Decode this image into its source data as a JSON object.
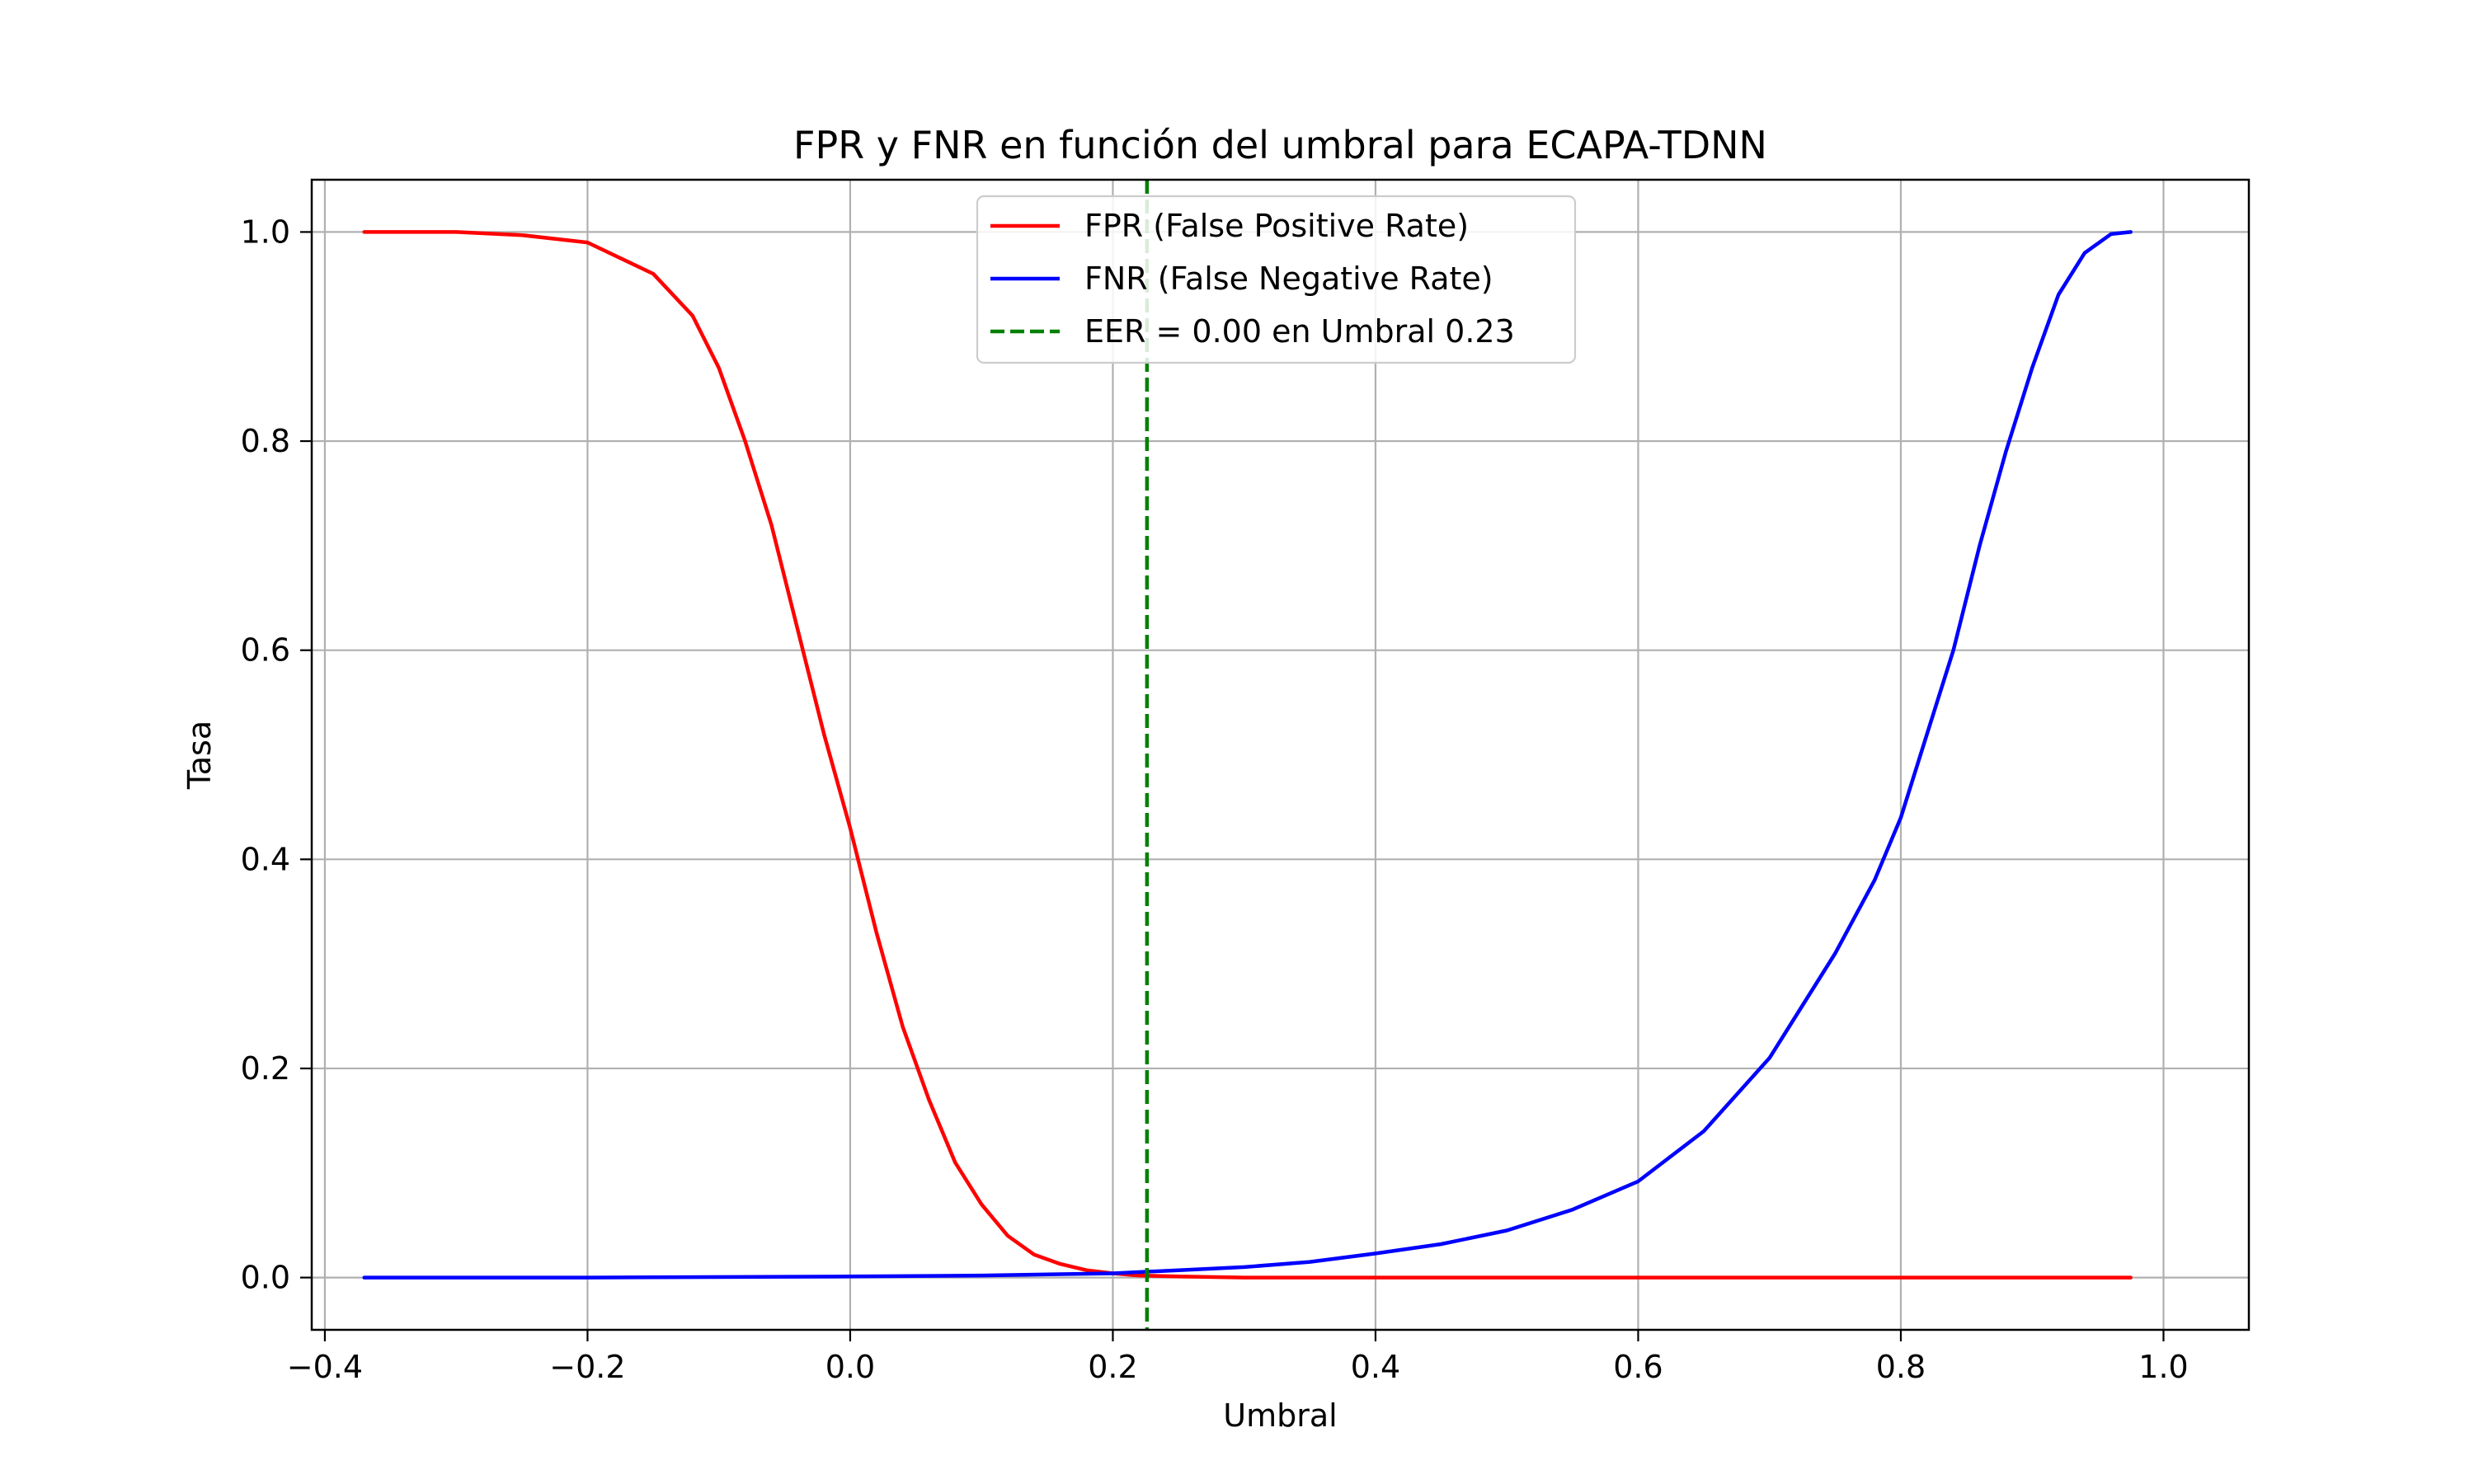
{
  "chart_data": {
    "type": "line",
    "title": "FPR y FNR en función del umbral para ECAPA-TDNN",
    "xlabel": "Umbral",
    "ylabel": "Tasa",
    "xlim": [
      -0.41,
      1.065
    ],
    "ylim": [
      -0.05,
      1.05
    ],
    "x_ticks": [
      -0.4,
      -0.2,
      0.0,
      0.2,
      0.4,
      0.6,
      0.8,
      1.0
    ],
    "x_tick_labels": [
      "−0.4",
      "−0.2",
      "0.0",
      "0.2",
      "0.4",
      "0.6",
      "0.8",
      "1.0"
    ],
    "y_ticks": [
      0.0,
      0.2,
      0.4,
      0.6,
      0.8,
      1.0
    ],
    "y_tick_labels": [
      "0.0",
      "0.2",
      "0.4",
      "0.6",
      "0.8",
      "1.0"
    ],
    "grid": true,
    "legend_position": "upper-center",
    "series": [
      {
        "name": "FPR (False Positive Rate)",
        "color": "#ff0000",
        "style": "solid",
        "x": [
          -0.37,
          -0.3,
          -0.25,
          -0.2,
          -0.15,
          -0.12,
          -0.1,
          -0.08,
          -0.06,
          -0.04,
          -0.02,
          0.0,
          0.02,
          0.04,
          0.06,
          0.08,
          0.1,
          0.12,
          0.14,
          0.16,
          0.18,
          0.2,
          0.22,
          0.25,
          0.3,
          0.4,
          0.6,
          0.8,
          0.975
        ],
        "values": [
          1.0,
          1.0,
          0.997,
          0.99,
          0.96,
          0.92,
          0.87,
          0.8,
          0.72,
          0.62,
          0.52,
          0.43,
          0.33,
          0.24,
          0.17,
          0.11,
          0.07,
          0.04,
          0.022,
          0.013,
          0.007,
          0.004,
          0.002,
          0.001,
          0.0,
          0.0,
          0.0,
          0.0,
          0.0
        ]
      },
      {
        "name": "FNR (False Negative Rate)",
        "color": "#0000ff",
        "style": "solid",
        "x": [
          -0.37,
          -0.2,
          0.0,
          0.1,
          0.2,
          0.25,
          0.3,
          0.35,
          0.4,
          0.45,
          0.5,
          0.55,
          0.6,
          0.65,
          0.7,
          0.72,
          0.75,
          0.78,
          0.8,
          0.82,
          0.84,
          0.86,
          0.88,
          0.9,
          0.92,
          0.94,
          0.96,
          0.975
        ],
        "values": [
          0.0,
          0.0,
          0.001,
          0.002,
          0.004,
          0.007,
          0.01,
          0.015,
          0.023,
          0.032,
          0.045,
          0.065,
          0.092,
          0.14,
          0.21,
          0.25,
          0.31,
          0.38,
          0.44,
          0.52,
          0.6,
          0.7,
          0.79,
          0.87,
          0.94,
          0.98,
          0.998,
          1.0
        ]
      }
    ],
    "vlines": [
      {
        "name": "EER = 0.00 en Umbral 0.23",
        "x": 0.226,
        "color": "#008000",
        "style": "dashed"
      }
    ]
  }
}
